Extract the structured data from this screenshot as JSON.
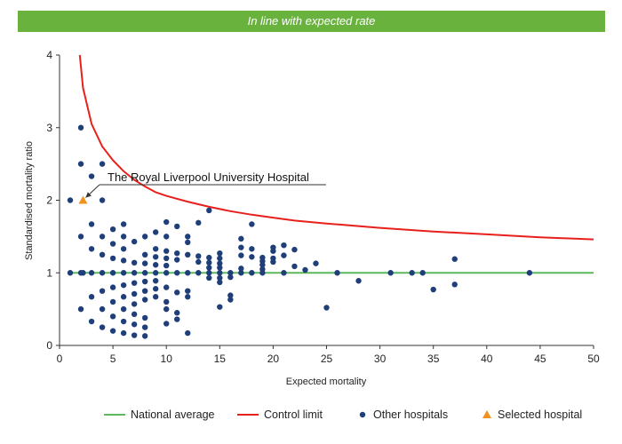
{
  "chart_data": {
    "type": "scatter",
    "banner": "In line with expected rate",
    "banner_color": "#6ab23e",
    "xlabel": "Expected mortality",
    "ylabel": "Standardised mortality ratio",
    "xlim": [
      0,
      50
    ],
    "ylim": [
      0,
      4
    ],
    "xticks": [
      0,
      5,
      10,
      15,
      20,
      25,
      30,
      35,
      40,
      45,
      50
    ],
    "yticks": [
      0,
      1,
      2,
      3,
      4
    ],
    "grid": false,
    "legend_position": "bottom",
    "series": [
      {
        "name": "National average",
        "kind": "line",
        "color": "#5cb85c",
        "x": [
          1,
          50
        ],
        "y": [
          1,
          1
        ]
      },
      {
        "name": "Control limit",
        "kind": "line",
        "color": "#e8201c",
        "x": [
          1.9,
          2.2,
          3,
          4,
          5,
          6,
          7,
          8,
          9,
          10,
          12,
          14,
          16,
          18,
          20,
          22,
          25,
          30,
          35,
          40,
          45,
          50
        ],
        "y": [
          4.0,
          3.55,
          3.05,
          2.74,
          2.55,
          2.4,
          2.28,
          2.19,
          2.11,
          2.06,
          1.98,
          1.91,
          1.85,
          1.8,
          1.76,
          1.72,
          1.68,
          1.62,
          1.57,
          1.53,
          1.49,
          1.46
        ]
      },
      {
        "name": "Other hospitals",
        "kind": "scatter",
        "color": "#1f3f7a",
        "points": [
          [
            1,
            2
          ],
          [
            1,
            1
          ],
          [
            2,
            3
          ],
          [
            2,
            2.5
          ],
          [
            2,
            1.5
          ],
          [
            2,
            1
          ],
          [
            2,
            0.5
          ],
          [
            2.2,
            1
          ],
          [
            3,
            2.33
          ],
          [
            3,
            1.67
          ],
          [
            3,
            1.33
          ],
          [
            3,
            1
          ],
          [
            3,
            0.67
          ],
          [
            3,
            0.33
          ],
          [
            4,
            2.5
          ],
          [
            4,
            2
          ],
          [
            4,
            1.5
          ],
          [
            4,
            1.25
          ],
          [
            4,
            1
          ],
          [
            4,
            0.75
          ],
          [
            4,
            0.5
          ],
          [
            4,
            0.25
          ],
          [
            5,
            1.6
          ],
          [
            5,
            1.4
          ],
          [
            5,
            1.2
          ],
          [
            5,
            1
          ],
          [
            5,
            0.8
          ],
          [
            5,
            0.6
          ],
          [
            5,
            0.4
          ],
          [
            5,
            0.2
          ],
          [
            6,
            1.67
          ],
          [
            6,
            1.5
          ],
          [
            6,
            1.33
          ],
          [
            6,
            1.17
          ],
          [
            6,
            1
          ],
          [
            6,
            0.83
          ],
          [
            6,
            0.67
          ],
          [
            6,
            0.5
          ],
          [
            6,
            0.33
          ],
          [
            6,
            0.17
          ],
          [
            7,
            1.43
          ],
          [
            7,
            1.14
          ],
          [
            7,
            1
          ],
          [
            7,
            0.86
          ],
          [
            7,
            0.71
          ],
          [
            7,
            0.57
          ],
          [
            7,
            0.43
          ],
          [
            7,
            0.29
          ],
          [
            7,
            0.14
          ],
          [
            8,
            1.5
          ],
          [
            8,
            1.25
          ],
          [
            8,
            1.13
          ],
          [
            8,
            1
          ],
          [
            8,
            0.88
          ],
          [
            8,
            0.75
          ],
          [
            8,
            0.63
          ],
          [
            8,
            0.38
          ],
          [
            8,
            0.25
          ],
          [
            8,
            0.13
          ],
          [
            9,
            1.56
          ],
          [
            9,
            1.33
          ],
          [
            9,
            1.22
          ],
          [
            9,
            1.11
          ],
          [
            9,
            1
          ],
          [
            9,
            0.89
          ],
          [
            9,
            0.78
          ],
          [
            9,
            0.67
          ],
          [
            10,
            1.7
          ],
          [
            10,
            1.5
          ],
          [
            10,
            1.3
          ],
          [
            10,
            1.2
          ],
          [
            10,
            1.1
          ],
          [
            10,
            1
          ],
          [
            10,
            0.8
          ],
          [
            10,
            0.6
          ],
          [
            10,
            0.5
          ],
          [
            10,
            0.3
          ],
          [
            11,
            1.64
          ],
          [
            11,
            1.27
          ],
          [
            11,
            1.18
          ],
          [
            11,
            1
          ],
          [
            11,
            0.73
          ],
          [
            11,
            0.45
          ],
          [
            11,
            0.36
          ],
          [
            12,
            1.5
          ],
          [
            12,
            1.42
          ],
          [
            12,
            1.25
          ],
          [
            12,
            1
          ],
          [
            12,
            0.75
          ],
          [
            12,
            0.67
          ],
          [
            12,
            0.17
          ],
          [
            13,
            1.69
          ],
          [
            13,
            1.23
          ],
          [
            13,
            1.15
          ],
          [
            13,
            1
          ],
          [
            14,
            1.86
          ],
          [
            14,
            1.21
          ],
          [
            14,
            1.14
          ],
          [
            14,
            1.07
          ],
          [
            14,
            1
          ],
          [
            14,
            0.93
          ],
          [
            15,
            1.27
          ],
          [
            15,
            1.2
          ],
          [
            15,
            1.13
          ],
          [
            15,
            1.07
          ],
          [
            15,
            1
          ],
          [
            15,
            0.93
          ],
          [
            15,
            0.87
          ],
          [
            15,
            0.53
          ],
          [
            16,
            1
          ],
          [
            16,
            0.94
          ],
          [
            16,
            0.69
          ],
          [
            16,
            0.63
          ],
          [
            17,
            1.47
          ],
          [
            17,
            1.35
          ],
          [
            17,
            1.24
          ],
          [
            17,
            1.06
          ],
          [
            17,
            1
          ],
          [
            18,
            1.67
          ],
          [
            18,
            1.33
          ],
          [
            18,
            1.22
          ],
          [
            18,
            1
          ],
          [
            19,
            1.21
          ],
          [
            19,
            1.16
          ],
          [
            19,
            1.11
          ],
          [
            19,
            1.05
          ],
          [
            19,
            1
          ],
          [
            20,
            1.35
          ],
          [
            20,
            1.3
          ],
          [
            20,
            1.2
          ],
          [
            20,
            1.15
          ],
          [
            21,
            1.38
          ],
          [
            21,
            1.24
          ],
          [
            21,
            1
          ],
          [
            22,
            1.32
          ],
          [
            22,
            1.09
          ],
          [
            23,
            1.04
          ],
          [
            24,
            1.13
          ],
          [
            25,
            0.52
          ],
          [
            26,
            1
          ],
          [
            28,
            0.89
          ],
          [
            31,
            1
          ],
          [
            33,
            1
          ],
          [
            34,
            1
          ],
          [
            35,
            0.77
          ],
          [
            37,
            1.19
          ],
          [
            37,
            0.84
          ],
          [
            44,
            1
          ]
        ]
      },
      {
        "name": "Selected hospital",
        "kind": "scatter",
        "marker": "triangle",
        "color": "#f0921e",
        "points": [
          [
            2.2,
            2.0
          ]
        ]
      }
    ],
    "annotations": [
      {
        "text": "The Royal Liverpool University Hospital",
        "x": 2.2,
        "y": 2.0
      }
    ]
  }
}
